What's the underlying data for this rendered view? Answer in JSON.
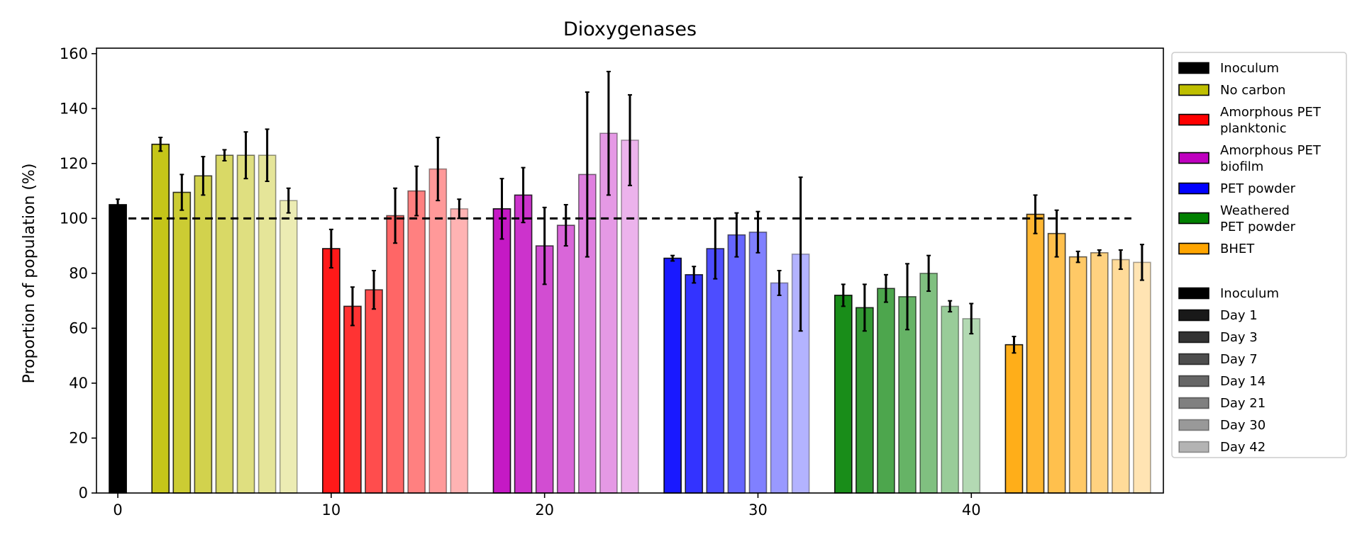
{
  "chart_data": {
    "type": "bar",
    "title": "Dioxygenases",
    "xlabel": "",
    "ylabel": "Proportion of population (%)",
    "xlim": [
      -1,
      49
    ],
    "ylim": [
      0,
      162
    ],
    "x_ticks": [
      0,
      10,
      20,
      30,
      40
    ],
    "y_ticks": [
      0,
      20,
      40,
      60,
      80,
      100,
      120,
      140,
      160
    ],
    "reference_line": {
      "y": 100,
      "style": "dashed",
      "color": "#000000"
    },
    "series": [
      {
        "name": "Inoculum",
        "color": "#000000",
        "x": [
          0
        ],
        "values": [
          105
        ],
        "errors": [
          2
        ],
        "days": [
          "Inoculum"
        ]
      },
      {
        "name": "No carbon",
        "color": "#bfbf00",
        "x": [
          2,
          3,
          4,
          5,
          6,
          7,
          8
        ],
        "values": [
          127,
          109.5,
          115.5,
          123,
          123,
          123,
          106.5
        ],
        "errors": [
          2.5,
          6.5,
          7,
          2,
          8.5,
          9.5,
          4.5
        ],
        "days": [
          "Day 1",
          "Day 3",
          "Day 7",
          "Day 14",
          "Day 21",
          "Day 30",
          "Day 42"
        ]
      },
      {
        "name": "Amorphous PET planktonic",
        "color": "#ff0000",
        "x": [
          10,
          11,
          12,
          13,
          14,
          15,
          16
        ],
        "values": [
          89,
          68,
          74,
          101,
          110,
          118,
          103.5
        ],
        "errors": [
          7,
          7,
          7,
          10,
          9,
          11.5,
          3.5
        ],
        "days": [
          "Day 1",
          "Day 3",
          "Day 7",
          "Day 14",
          "Day 21",
          "Day 30",
          "Day 42"
        ]
      },
      {
        "name": "Amorphous PET biofilm",
        "color": "#bf00bf",
        "x": [
          18,
          19,
          20,
          21,
          22,
          23,
          24
        ],
        "values": [
          103.5,
          108.5,
          90,
          97.5,
          116,
          131,
          128.5
        ],
        "errors": [
          11,
          10,
          14,
          7.5,
          30,
          22.5,
          16.5
        ],
        "days": [
          "Day 1",
          "Day 3",
          "Day 7",
          "Day 14",
          "Day 21",
          "Day 30",
          "Day 42"
        ]
      },
      {
        "name": "PET powder",
        "color": "#0000ff",
        "x": [
          26,
          27,
          28,
          29,
          30,
          31,
          32
        ],
        "values": [
          85.5,
          79.5,
          89,
          94,
          95,
          76.5,
          87
        ],
        "errors": [
          1,
          3,
          11,
          8,
          7.5,
          4.5,
          28
        ],
        "days": [
          "Day 1",
          "Day 3",
          "Day 7",
          "Day 14",
          "Day 21",
          "Day 30",
          "Day 42"
        ]
      },
      {
        "name": "Weathered PET powder",
        "color": "#008000",
        "x": [
          34,
          35,
          36,
          37,
          38,
          39,
          40
        ],
        "values": [
          72,
          67.5,
          74.5,
          71.5,
          80,
          68,
          63.5
        ],
        "errors": [
          4,
          8.5,
          5,
          12,
          6.5,
          2,
          5.5
        ],
        "days": [
          "Day 1",
          "Day 3",
          "Day 7",
          "Day 14",
          "Day 21",
          "Day 30",
          "Day 42"
        ]
      },
      {
        "name": "BHET",
        "color": "#ffa500",
        "x": [
          42,
          43,
          44,
          45,
          46,
          47,
          48
        ],
        "values": [
          54,
          101.5,
          94.5,
          86,
          87.5,
          85,
          84
        ],
        "errors": [
          3,
          7,
          8.5,
          2,
          1,
          3.5,
          6.5
        ],
        "days": [
          "Day 1",
          "Day 3",
          "Day 7",
          "Day 14",
          "Day 21",
          "Day 30",
          "Day 42"
        ]
      }
    ],
    "legend": {
      "position": "outside-right-top",
      "groups": [
        {
          "label_lines": [
            "Inoculum"
          ],
          "color": "#000000"
        },
        {
          "label_lines": [
            "No carbon"
          ],
          "color": "#bfbf00"
        },
        {
          "label_lines": [
            "Amorphous PET",
            "planktonic"
          ],
          "color": "#ff0000"
        },
        {
          "label_lines": [
            "Amorphous PET",
            "biofilm"
          ],
          "color": "#bf00bf"
        },
        {
          "label_lines": [
            "PET powder"
          ],
          "color": "#0000ff"
        },
        {
          "label_lines": [
            "Weathered",
            "PET powder"
          ],
          "color": "#008000"
        },
        {
          "label_lines": [
            "BHET"
          ],
          "color": "#ffa500"
        }
      ],
      "days": [
        {
          "label": "Inoculum",
          "alpha": 1.0
        },
        {
          "label": "Day 1",
          "alpha": 0.9
        },
        {
          "label": "Day 3",
          "alpha": 0.8
        },
        {
          "label": "Day 7",
          "alpha": 0.7
        },
        {
          "label": "Day 14",
          "alpha": 0.6
        },
        {
          "label": "Day 21",
          "alpha": 0.5
        },
        {
          "label": "Day 30",
          "alpha": 0.4
        },
        {
          "label": "Day 42",
          "alpha": 0.3
        }
      ]
    },
    "day_alphas": [
      0.9,
      0.8,
      0.7,
      0.6,
      0.5,
      0.4,
      0.3
    ]
  }
}
